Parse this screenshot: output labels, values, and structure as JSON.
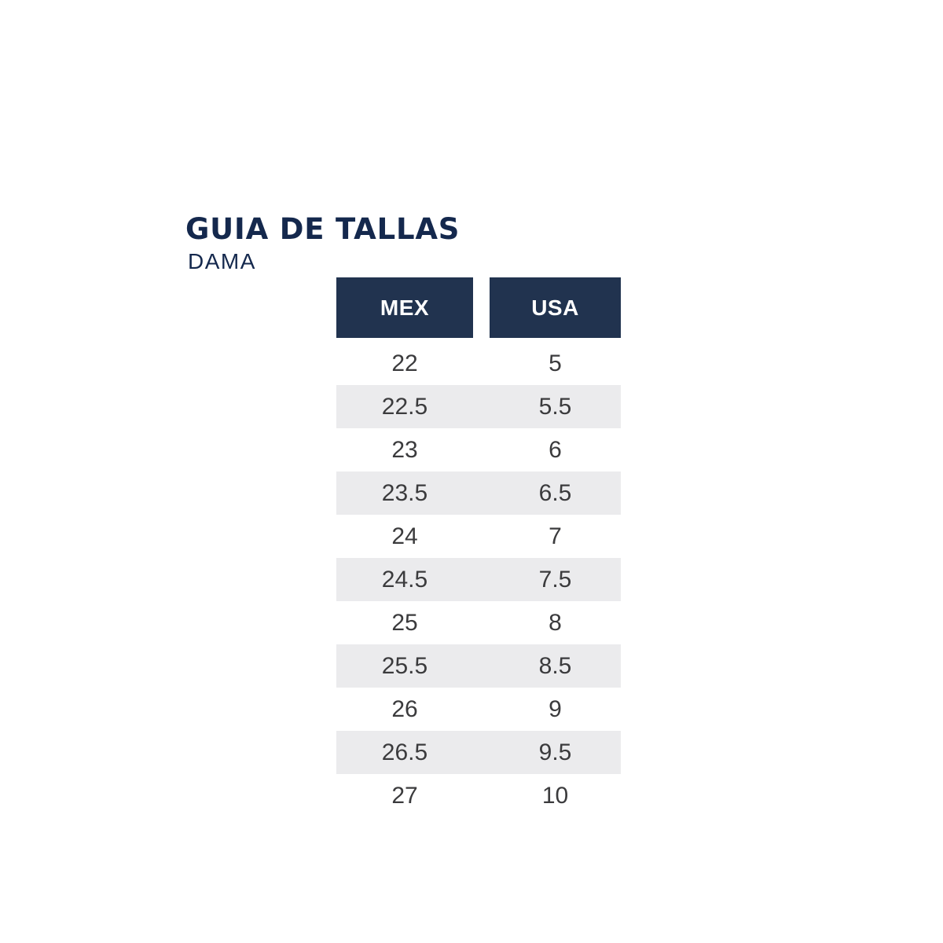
{
  "header": {
    "title": "GUIA DE TALLAS",
    "subtitle": "DAMA"
  },
  "table": {
    "columns": [
      "MEX",
      "USA"
    ],
    "rows": [
      [
        "22",
        "5"
      ],
      [
        "22.5",
        "5.5"
      ],
      [
        "23",
        "6"
      ],
      [
        "23.5",
        "6.5"
      ],
      [
        "24",
        "7"
      ],
      [
        "24.5",
        "7.5"
      ],
      [
        "25",
        "8"
      ],
      [
        "25.5",
        "8.5"
      ],
      [
        "26",
        "9"
      ],
      [
        "26.5",
        "9.5"
      ],
      [
        "27",
        "10"
      ]
    ]
  },
  "colors": {
    "navy_title": "#14284d",
    "header_bg": "#21334f",
    "stripe": "#ebebed",
    "cell_text": "#3b3b3d"
  }
}
